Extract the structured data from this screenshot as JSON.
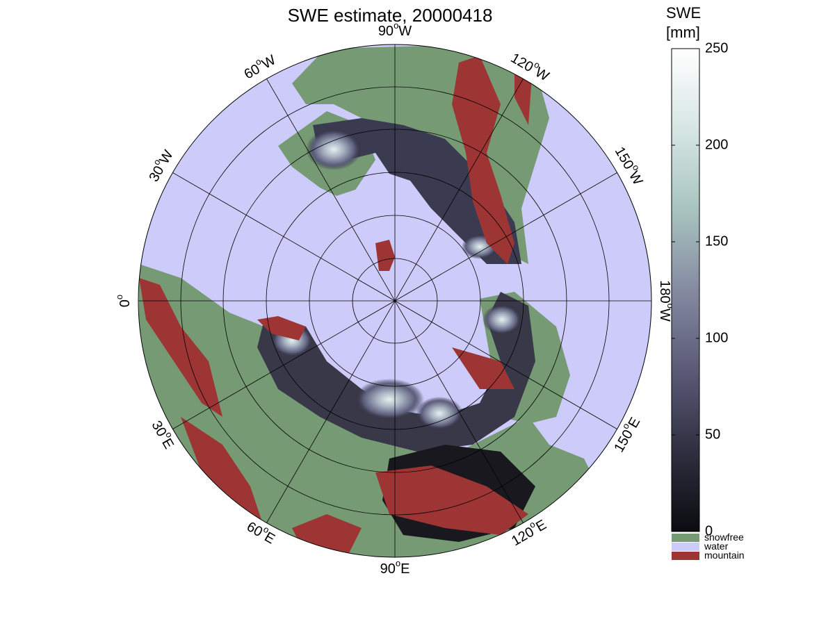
{
  "title": "SWE estimate, 20000418",
  "longitude_labels": [
    {
      "id": "lon-0",
      "text": "0",
      "deg": "o",
      "suffix": ""
    },
    {
      "id": "lon-30w",
      "text": "30",
      "deg": "o",
      "suffix": "W"
    },
    {
      "id": "lon-60w",
      "text": "60",
      "deg": "o",
      "suffix": "W"
    },
    {
      "id": "lon-90w",
      "text": "90",
      "deg": "o",
      "suffix": "W"
    },
    {
      "id": "lon-120w",
      "text": "120",
      "deg": "o",
      "suffix": "W"
    },
    {
      "id": "lon-150w",
      "text": "150",
      "deg": "o",
      "suffix": "W"
    },
    {
      "id": "lon-180w",
      "text": "180",
      "deg": "o",
      "suffix": "W"
    },
    {
      "id": "lon-150e",
      "text": "150",
      "deg": "o",
      "suffix": "E"
    },
    {
      "id": "lon-120e",
      "text": "120",
      "deg": "o",
      "suffix": "E"
    },
    {
      "id": "lon-90e",
      "text": "90",
      "deg": "o",
      "suffix": "E"
    },
    {
      "id": "lon-60e",
      "text": "60",
      "deg": "o",
      "suffix": "E"
    },
    {
      "id": "lon-30e",
      "text": "30",
      "deg": "o",
      "suffix": "E"
    }
  ],
  "colorbar": {
    "title_line1": "SWE",
    "title_line2": "[mm]",
    "range": [
      0,
      250
    ],
    "ticks": [
      "0",
      "50",
      "100",
      "150",
      "200",
      "250"
    ],
    "gradient_colors": [
      "#0b0b10",
      "#2f2f40",
      "#5a5a78",
      "#858aa0",
      "#a8c4c0",
      "#d6e6e3",
      "#ffffff"
    ]
  },
  "legend": [
    {
      "label": "snowfree",
      "color": "#769a74"
    },
    {
      "label": "water",
      "color": "#cccbf9"
    },
    {
      "label": "mountain",
      "color": "#9e3535"
    }
  ],
  "colors": {
    "ocean": "#cccbf9",
    "land": "#769a74",
    "mountain": "#9e3535",
    "grid": "#000000"
  }
}
